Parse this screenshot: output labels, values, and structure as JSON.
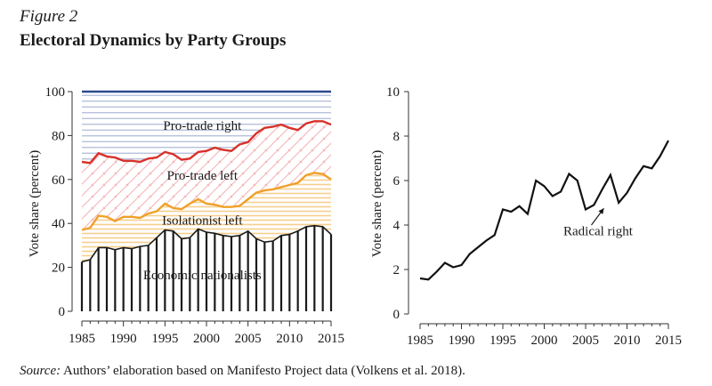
{
  "figure": {
    "label": "Figure 2",
    "title": "Electoral Dynamics by Party Groups"
  },
  "source": {
    "label": "Source:",
    "text": " Authors’ elaboration based on Manifesto Project data (Volkens et al. 2018)."
  },
  "colors": {
    "axis": "#333333",
    "top_line": "#2b4a8e",
    "top_stripes": "#aab8d6",
    "pro_trade_right_line": "#d8312a",
    "pro_trade_left_stripes": "#f2b4b7",
    "pro_trade_left_line": "#efa029",
    "isolationist_left_stripes": "#f6cf8c",
    "economic_nationalists_bars": "#1a1a1a",
    "radical_right_line": "#111111"
  },
  "chart_data": [
    {
      "type": "area",
      "xlabel": "",
      "ylabel": "Vote share (percent)",
      "xlim": [
        1985,
        2015
      ],
      "ylim": [
        0,
        100
      ],
      "xticks": [
        1985,
        1990,
        1995,
        2000,
        2005,
        2010,
        2015
      ],
      "yticks": [
        0,
        20,
        40,
        60,
        80,
        100
      ],
      "x": [
        1985,
        1986,
        1987,
        1988,
        1989,
        1990,
        1991,
        1992,
        1993,
        1994,
        1995,
        1996,
        1997,
        1998,
        1999,
        2000,
        2001,
        2002,
        2003,
        2004,
        2005,
        2006,
        2007,
        2008,
        2009,
        2010,
        2011,
        2012,
        2013,
        2014,
        2015
      ],
      "series": [
        {
          "name": "Economic nationalists",
          "kind": "bars",
          "values": [
            22.5,
            23.5,
            29,
            29,
            28,
            29,
            28.5,
            29.5,
            30,
            33.5,
            37,
            36.5,
            33,
            33.5,
            37.5,
            36,
            35.5,
            34.5,
            34,
            34.5,
            36.5,
            33,
            31.5,
            32,
            34.5,
            35,
            36.5,
            38.5,
            39,
            38.5,
            35
          ]
        },
        {
          "name": "Isolationist left",
          "kind": "area",
          "values": [
            37,
            38,
            43.5,
            43,
            41,
            43,
            43,
            42.5,
            44.5,
            45.5,
            49,
            47,
            46.5,
            49,
            51,
            49,
            48.5,
            47.5,
            47.5,
            48,
            51,
            54,
            55,
            55.5,
            56.5,
            57.5,
            58.5,
            62,
            63,
            62.5,
            60
          ]
        },
        {
          "name": "Pro-trade left",
          "kind": "area",
          "values": [
            68,
            67.5,
            72,
            70.5,
            70,
            68.5,
            68.5,
            68,
            69.5,
            70,
            72.5,
            71.5,
            69,
            69.5,
            72.5,
            73,
            74.5,
            73.5,
            73,
            76,
            77,
            81,
            83.5,
            84,
            85,
            83.5,
            82.5,
            85.5,
            86.5,
            86.5,
            85
          ]
        },
        {
          "name": "Pro-trade right",
          "kind": "area",
          "values": [
            100,
            100,
            100,
            100,
            100,
            100,
            100,
            100,
            100,
            100,
            100,
            100,
            100,
            100,
            100,
            100,
            100,
            100,
            100,
            100,
            100,
            100,
            100,
            100,
            100,
            100,
            100,
            100,
            100,
            100,
            100
          ]
        }
      ],
      "annotations": [
        "Pro-trade right",
        "Pro-trade left",
        "Isolationist left",
        "Economic nationalists"
      ]
    },
    {
      "type": "line",
      "xlabel": "",
      "ylabel": "Vote share (percent)",
      "xlim": [
        1985,
        2015
      ],
      "ylim": [
        0,
        10
      ],
      "xticks": [
        1985,
        1990,
        1995,
        2000,
        2005,
        2010,
        2015
      ],
      "yticks": [
        0,
        2,
        4,
        6,
        8,
        10
      ],
      "x": [
        1985,
        1986,
        1987,
        1988,
        1989,
        1990,
        1991,
        1992,
        1993,
        1994,
        1995,
        1996,
        1997,
        1998,
        1999,
        2000,
        2001,
        2002,
        2003,
        2004,
        2005,
        2006,
        2007,
        2008,
        2009,
        2010,
        2011,
        2012,
        2013,
        2014,
        2015
      ],
      "series": [
        {
          "name": "Radical right",
          "values": [
            1.6,
            1.55,
            1.9,
            2.3,
            2.1,
            2.2,
            2.7,
            3.0,
            3.3,
            3.55,
            4.7,
            4.6,
            4.85,
            4.5,
            6.0,
            5.75,
            5.3,
            5.5,
            6.3,
            6.0,
            4.7,
            4.9,
            5.6,
            6.25,
            5.0,
            5.45,
            6.1,
            6.65,
            6.55,
            7.1,
            7.8
          ]
        }
      ],
      "annotations": [
        "Radical right"
      ]
    }
  ]
}
